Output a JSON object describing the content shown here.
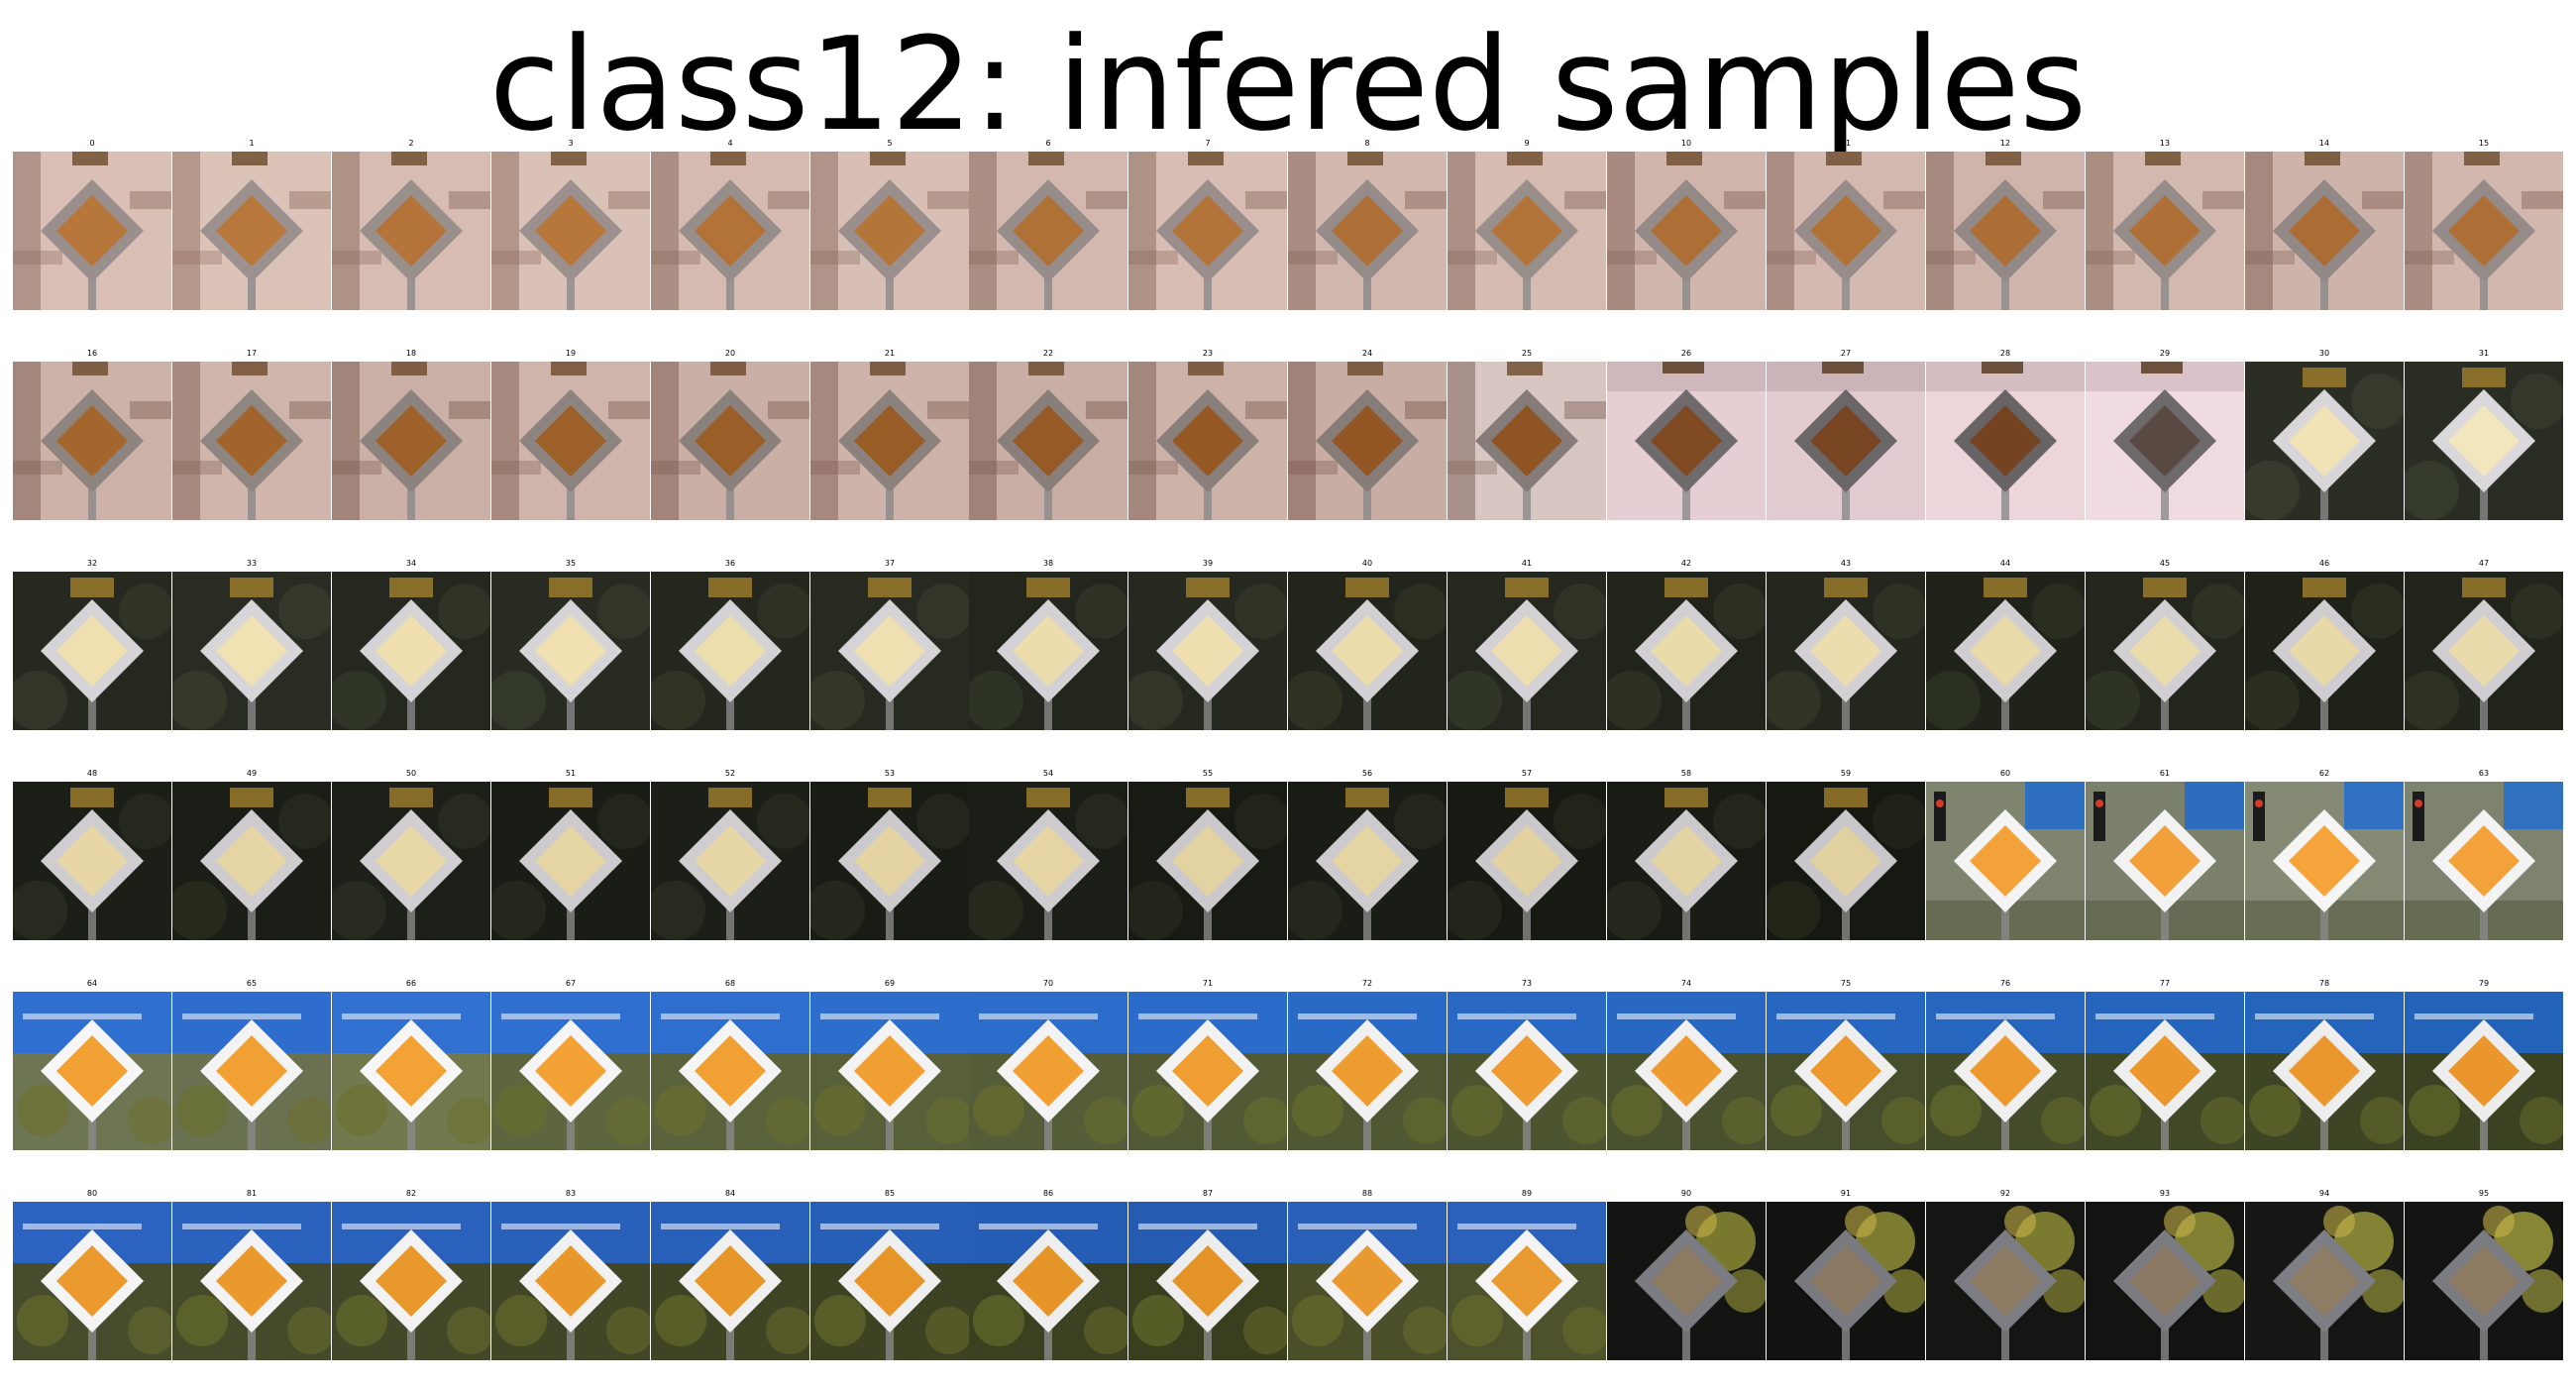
{
  "title": "class12: infered samples",
  "grid": {
    "columns": 16,
    "rows": 6
  },
  "samples": [
    {
      "label": "0",
      "scene": "building",
      "bg": "#d9bfb6",
      "accent": "#8a6a5c",
      "sign_fill": "#b7773a",
      "sign_border": "#9a8f8c"
    },
    {
      "label": "1",
      "scene": "building",
      "bg": "#dcc3b8",
      "accent": "#8e6d5f",
      "sign_fill": "#b8783b",
      "sign_border": "#9c918e"
    },
    {
      "label": "2",
      "scene": "building",
      "bg": "#d6bcb3",
      "accent": "#86675a",
      "sign_fill": "#b5753a",
      "sign_border": "#99908c"
    },
    {
      "label": "3",
      "scene": "building",
      "bg": "#dac1b7",
      "accent": "#8b6b5d",
      "sign_fill": "#b7773a",
      "sign_border": "#9b908d"
    },
    {
      "label": "4",
      "scene": "building",
      "bg": "#d4bab1",
      "accent": "#846458",
      "sign_fill": "#b27238",
      "sign_border": "#978d8a"
    },
    {
      "label": "5",
      "scene": "building",
      "bg": "#d8bfb5",
      "accent": "#896a5c",
      "sign_fill": "#b47539",
      "sign_border": "#9a8f8c"
    },
    {
      "label": "6",
      "scene": "building",
      "bg": "#d3b8af",
      "accent": "#836356",
      "sign_fill": "#b07137",
      "sign_border": "#968c89"
    },
    {
      "label": "7",
      "scene": "building",
      "bg": "#d7bdb3",
      "accent": "#87685a",
      "sign_fill": "#b37439",
      "sign_border": "#998e8b"
    },
    {
      "label": "8",
      "scene": "building",
      "bg": "#d2b7ae",
      "accent": "#826255",
      "sign_fill": "#af7037",
      "sign_border": "#958b88"
    },
    {
      "label": "9",
      "scene": "building",
      "bg": "#d5bbb1",
      "accent": "#856659",
      "sign_fill": "#b27338",
      "sign_border": "#988e8a"
    },
    {
      "label": "10",
      "scene": "building",
      "bg": "#d0b5ac",
      "accent": "#806054",
      "sign_fill": "#ae6f36",
      "sign_border": "#948a87"
    },
    {
      "label": "11",
      "scene": "building",
      "bg": "#d4b9b0",
      "accent": "#846457",
      "sign_fill": "#b07137",
      "sign_border": "#978c89"
    },
    {
      "label": "12",
      "scene": "building",
      "bg": "#cfb4ab",
      "accent": "#7f5f53",
      "sign_fill": "#ad6e36",
      "sign_border": "#938986"
    },
    {
      "label": "13",
      "scene": "building",
      "bg": "#d3b8af",
      "accent": "#836356",
      "sign_fill": "#af7037",
      "sign_border": "#968c89"
    },
    {
      "label": "14",
      "scene": "building",
      "bg": "#ceb3aa",
      "accent": "#7e5e52",
      "sign_fill": "#ac6d35",
      "sign_border": "#928885"
    },
    {
      "label": "15",
      "scene": "building",
      "bg": "#d2b7ae",
      "accent": "#826255",
      "sign_fill": "#ae6f36",
      "sign_border": "#958b88"
    },
    {
      "label": "16",
      "scene": "building",
      "bg": "#cdb2a9",
      "accent": "#7c5c50",
      "sign_fill": "#a4662c",
      "sign_border": "#8e8480"
    },
    {
      "label": "17",
      "scene": "building",
      "bg": "#d0b5ac",
      "accent": "#7f5f53",
      "sign_fill": "#a2642b",
      "sign_border": "#8f8581"
    },
    {
      "label": "18",
      "scene": "building",
      "bg": "#cbb0a7",
      "accent": "#7a5a4e",
      "sign_fill": "#9f612a",
      "sign_border": "#8c827e"
    },
    {
      "label": "19",
      "scene": "building",
      "bg": "#cfb4ab",
      "accent": "#7e5e52",
      "sign_fill": "#9d6029",
      "sign_border": "#8d837f"
    },
    {
      "label": "20",
      "scene": "building",
      "bg": "#caafa6",
      "accent": "#79594d",
      "sign_fill": "#9a5e28",
      "sign_border": "#8a807c"
    },
    {
      "label": "21",
      "scene": "building",
      "bg": "#ceb3aa",
      "accent": "#7d5d51",
      "sign_fill": "#985c27",
      "sign_border": "#8b817d"
    },
    {
      "label": "22",
      "scene": "building",
      "bg": "#c9aea5",
      "accent": "#78584c",
      "sign_fill": "#965a26",
      "sign_border": "#887e7a"
    },
    {
      "label": "23",
      "scene": "building",
      "bg": "#cdb2a9",
      "accent": "#7c5c50",
      "sign_fill": "#945925",
      "sign_border": "#897f7b"
    },
    {
      "label": "24",
      "scene": "building",
      "bg": "#c8ada4",
      "accent": "#77574b",
      "sign_fill": "#925724",
      "sign_border": "#867c78"
    },
    {
      "label": "25",
      "scene": "building",
      "bg": "#d8c6c2",
      "accent": "#7a5e55",
      "sign_fill": "#8e5424",
      "sign_border": "#857b78"
    },
    {
      "label": "26",
      "scene": "pink",
      "bg": "#e6cfd3",
      "accent": "#8a7378",
      "sign_fill": "#7f4a22",
      "sign_border": "#6f6a6c"
    },
    {
      "label": "27",
      "scene": "pink",
      "bg": "#e2cbcf",
      "accent": "#857075",
      "sign_fill": "#784622",
      "sign_border": "#6b6668"
    },
    {
      "label": "28",
      "scene": "pink",
      "bg": "#ecd6da",
      "accent": "#8e777c",
      "sign_fill": "#744322",
      "sign_border": "#686365"
    },
    {
      "label": "29",
      "scene": "pink",
      "bg": "#f0dbe0",
      "accent": "#927b80",
      "sign_fill": "#5a4a44",
      "sign_border": "#6e6a6c"
    },
    {
      "label": "30",
      "scene": "dark",
      "bg": "#2b2e24",
      "accent": "#3f4533",
      "sign_fill": "#f1e3b5",
      "sign_border": "#d8d6d8"
    },
    {
      "label": "31",
      "scene": "dark",
      "bg": "#2a2d23",
      "accent": "#3e4432",
      "sign_fill": "#f2e6bd",
      "sign_border": "#dad8da"
    },
    {
      "label": "32",
      "scene": "dark",
      "bg": "#25291f",
      "accent": "#3a402e",
      "sign_fill": "#efe0b0",
      "sign_border": "#d6d4d6"
    },
    {
      "label": "33",
      "scene": "dark",
      "bg": "#282c22",
      "accent": "#3d4331",
      "sign_fill": "#f0e2b3",
      "sign_border": "#d7d5d7"
    },
    {
      "label": "34",
      "scene": "dark",
      "bg": "#24281e",
      "accent": "#393f2d",
      "sign_fill": "#eedfae",
      "sign_border": "#d5d3d5"
    },
    {
      "label": "35",
      "scene": "dark",
      "bg": "#272b21",
      "accent": "#3c4230",
      "sign_fill": "#efe1b1",
      "sign_border": "#d6d4d6"
    },
    {
      "label": "36",
      "scene": "dark",
      "bg": "#23271d",
      "accent": "#383e2c",
      "sign_fill": "#eddead",
      "sign_border": "#d4d2d4"
    },
    {
      "label": "37",
      "scene": "dark",
      "bg": "#262a20",
      "accent": "#3b412f",
      "sign_fill": "#eee0b0",
      "sign_border": "#d5d3d5"
    },
    {
      "label": "38",
      "scene": "dark",
      "bg": "#22261c",
      "accent": "#373d2b",
      "sign_fill": "#ecddac",
      "sign_border": "#d3d1d3"
    },
    {
      "label": "39",
      "scene": "dark",
      "bg": "#25291f",
      "accent": "#3a402e",
      "sign_fill": "#eddfaf",
      "sign_border": "#d4d2d4"
    },
    {
      "label": "40",
      "scene": "dark",
      "bg": "#21251b",
      "accent": "#363c2a",
      "sign_fill": "#ebdcab",
      "sign_border": "#d2d0d2"
    },
    {
      "label": "41",
      "scene": "dark",
      "bg": "#24281e",
      "accent": "#393f2d",
      "sign_fill": "#ecdeae",
      "sign_border": "#d3d1d3"
    },
    {
      "label": "42",
      "scene": "dark",
      "bg": "#20241a",
      "accent": "#353b29",
      "sign_fill": "#eadbaa",
      "sign_border": "#d1cfd1"
    },
    {
      "label": "43",
      "scene": "dark",
      "bg": "#23271d",
      "accent": "#383e2c",
      "sign_fill": "#ebddad",
      "sign_border": "#d2d0d2"
    },
    {
      "label": "44",
      "scene": "dark",
      "bg": "#1f2319",
      "accent": "#343a28",
      "sign_fill": "#e9daa9",
      "sign_border": "#d0ced0"
    },
    {
      "label": "45",
      "scene": "dark",
      "bg": "#22261c",
      "accent": "#373d2b",
      "sign_fill": "#eadcac",
      "sign_border": "#d1cfd1"
    },
    {
      "label": "46",
      "scene": "dark",
      "bg": "#1e2218",
      "accent": "#333927",
      "sign_fill": "#e8d9a8",
      "sign_border": "#cfcdcf"
    },
    {
      "label": "47",
      "scene": "dark",
      "bg": "#21251b",
      "accent": "#363c2a",
      "sign_fill": "#e9dbab",
      "sign_border": "#d0ced0"
    },
    {
      "label": "48",
      "scene": "dark",
      "bg": "#1c1f17",
      "accent": "#2e3324",
      "sign_fill": "#e8d7a6",
      "sign_border": "#cfcdcf"
    },
    {
      "label": "49",
      "scene": "dark",
      "bg": "#1b1e16",
      "accent": "#2d3223",
      "sign_fill": "#e7d6a5",
      "sign_border": "#cecccf"
    },
    {
      "label": "50",
      "scene": "dark",
      "bg": "#1d2018",
      "accent": "#2f3425",
      "sign_fill": "#e9d8a7",
      "sign_border": "#d0ced0"
    },
    {
      "label": "51",
      "scene": "dark",
      "bg": "#1a1d15",
      "accent": "#2c3122",
      "sign_fill": "#e6d5a4",
      "sign_border": "#cdcbcd"
    },
    {
      "label": "52",
      "scene": "dark",
      "bg": "#1c1f17",
      "accent": "#2e3324",
      "sign_fill": "#e8d7a6",
      "sign_border": "#cfcdcf"
    },
    {
      "label": "53",
      "scene": "dark",
      "bg": "#191c14",
      "accent": "#2b3021",
      "sign_fill": "#e5d4a3",
      "sign_border": "#cccacc"
    },
    {
      "label": "54",
      "scene": "dark",
      "bg": "#1b1e16",
      "accent": "#2d3223",
      "sign_fill": "#e7d6a5",
      "sign_border": "#cecccf"
    },
    {
      "label": "55",
      "scene": "dark",
      "bg": "#181b13",
      "accent": "#2a2f20",
      "sign_fill": "#e4d3a2",
      "sign_border": "#cbc9cb"
    },
    {
      "label": "56",
      "scene": "dark",
      "bg": "#1a1d15",
      "accent": "#2c3122",
      "sign_fill": "#e6d5a4",
      "sign_border": "#cdcbcd"
    },
    {
      "label": "57",
      "scene": "dark",
      "bg": "#171a12",
      "accent": "#292e1f",
      "sign_fill": "#e3d2a1",
      "sign_border": "#cac8ca"
    },
    {
      "label": "58",
      "scene": "dark",
      "bg": "#191c14",
      "accent": "#2b3021",
      "sign_fill": "#e5d4a3",
      "sign_border": "#cccacc"
    },
    {
      "label": "59",
      "scene": "dark",
      "bg": "#161911",
      "accent": "#282d1e",
      "sign_fill": "#e2d1a0",
      "sign_border": "#c9c7c9"
    },
    {
      "label": "60",
      "scene": "street",
      "bg": "#7f846f",
      "accent": "#2f6fc0",
      "sign_fill": "#f3a23a",
      "sign_border": "#f4f4f4"
    },
    {
      "label": "61",
      "scene": "street",
      "bg": "#7a806b",
      "accent": "#2e6dbd",
      "sign_fill": "#f2a03a",
      "sign_border": "#f2f2f2"
    },
    {
      "label": "62",
      "scene": "street",
      "bg": "#848a74",
      "accent": "#3071c2",
      "sign_fill": "#f4a43b",
      "sign_border": "#f5f5f5"
    },
    {
      "label": "63",
      "scene": "street",
      "bg": "#7d836e",
      "accent": "#2f70bf",
      "sign_fill": "#f3a23a",
      "sign_border": "#f3f3f3"
    },
    {
      "label": "64",
      "scene": "blue",
      "bg": "#6e7552",
      "accent": "#2f6fd0",
      "sign_fill": "#f2a235",
      "sign_border": "#f6f6f6"
    },
    {
      "label": "65",
      "scene": "blue",
      "bg": "#6a7150",
      "accent": "#2e6dcd",
      "sign_fill": "#f1a034",
      "sign_border": "#f4f4f4"
    },
    {
      "label": "66",
      "scene": "blue",
      "bg": "#72794f",
      "accent": "#3071d2",
      "sign_fill": "#f3a336",
      "sign_border": "#f6f6f6"
    },
    {
      "label": "67",
      "scene": "blue",
      "bg": "#5e6640",
      "accent": "#2f6fd0",
      "sign_fill": "#f2a235",
      "sign_border": "#f5f5f5"
    },
    {
      "label": "68",
      "scene": "blue",
      "bg": "#5b633d",
      "accent": "#2e6ece",
      "sign_fill": "#f1a134",
      "sign_border": "#f4f4f4"
    },
    {
      "label": "69",
      "scene": "blue",
      "bg": "#58603a",
      "accent": "#2d6dcc",
      "sign_fill": "#f0a033",
      "sign_border": "#f3f3f3"
    },
    {
      "label": "70",
      "scene": "blue",
      "bg": "#555d38",
      "accent": "#2c6cca",
      "sign_fill": "#f09f33",
      "sign_border": "#f3f3f3"
    },
    {
      "label": "71",
      "scene": "blue",
      "bg": "#525a35",
      "accent": "#2b6bc9",
      "sign_fill": "#ef9e32",
      "sign_border": "#f2f2f2"
    },
    {
      "label": "72",
      "scene": "blue",
      "bg": "#4f5733",
      "accent": "#2a6ac7",
      "sign_fill": "#ee9d31",
      "sign_border": "#f1f1f1"
    },
    {
      "label": "73",
      "scene": "blue",
      "bg": "#4c5430",
      "accent": "#2969c5",
      "sign_fill": "#ee9c31",
      "sign_border": "#f1f1f1"
    },
    {
      "label": "74",
      "scene": "blue",
      "bg": "#49512e",
      "accent": "#2868c3",
      "sign_fill": "#ed9b30",
      "sign_border": "#f0f0f0"
    },
    {
      "label": "75",
      "scene": "blue",
      "bg": "#464e2b",
      "accent": "#2767c1",
      "sign_fill": "#ec9a2f",
      "sign_border": "#efefef"
    },
    {
      "label": "76",
      "scene": "blue",
      "bg": "#434b29",
      "accent": "#2666bf",
      "sign_fill": "#ec992f",
      "sign_border": "#efefef"
    },
    {
      "label": "77",
      "scene": "blue",
      "bg": "#404826",
      "accent": "#2565bd",
      "sign_fill": "#eb982e",
      "sign_border": "#eeeeee"
    },
    {
      "label": "78",
      "scene": "blue",
      "bg": "#3d4524",
      "accent": "#2464bb",
      "sign_fill": "#ea972d",
      "sign_border": "#ededed"
    },
    {
      "label": "79",
      "scene": "blue",
      "bg": "#3a4221",
      "accent": "#2363b9",
      "sign_fill": "#ea962d",
      "sign_border": "#ededed"
    },
    {
      "label": "80",
      "scene": "blue",
      "bg": "#474d2c",
      "accent": "#2c63c0",
      "sign_fill": "#eb9a2e",
      "sign_border": "#f4f4f4"
    },
    {
      "label": "81",
      "scene": "blue",
      "bg": "#454b2a",
      "accent": "#2b62be",
      "sign_fill": "#ea992d",
      "sign_border": "#f3f3f3"
    },
    {
      "label": "82",
      "scene": "blue",
      "bg": "#434928",
      "accent": "#2a61bc",
      "sign_fill": "#e9982c",
      "sign_border": "#f2f2f2"
    },
    {
      "label": "83",
      "scene": "blue",
      "bg": "#414726",
      "accent": "#2960ba",
      "sign_fill": "#e8972b",
      "sign_border": "#f1f1f1"
    },
    {
      "label": "84",
      "scene": "blue",
      "bg": "#3f4524",
      "accent": "#285fb8",
      "sign_fill": "#e7962a",
      "sign_border": "#f0f0f0"
    },
    {
      "label": "85",
      "scene": "blue",
      "bg": "#3d4322",
      "accent": "#275eb6",
      "sign_fill": "#e69529",
      "sign_border": "#efefef"
    },
    {
      "label": "86",
      "scene": "blue",
      "bg": "#3b4120",
      "accent": "#265db4",
      "sign_fill": "#e59428",
      "sign_border": "#eeeeee"
    },
    {
      "label": "87",
      "scene": "blue",
      "bg": "#393f1e",
      "accent": "#255cb2",
      "sign_fill": "#e49327",
      "sign_border": "#ededed"
    },
    {
      "label": "88",
      "scene": "blue",
      "bg": "#4a4f2a",
      "accent": "#2a60b8",
      "sign_fill": "#e89a30",
      "sign_border": "#f3f3f3"
    },
    {
      "label": "89",
      "scene": "blue",
      "bg": "#4d522c",
      "accent": "#2b61ba",
      "sign_fill": "#e99b31",
      "sign_border": "#f4f4f4"
    },
    {
      "label": "90",
      "scene": "foliage",
      "bg": "#141512",
      "accent": "#9a9a3a",
      "sign_fill": "#8d7a63",
      "sign_border": "#7b7b82"
    },
    {
      "label": "91",
      "scene": "foliage",
      "bg": "#121310",
      "accent": "#a0a03c",
      "sign_fill": "#8b7862",
      "sign_border": "#797980"
    },
    {
      "label": "92",
      "scene": "foliage",
      "bg": "#151613",
      "accent": "#9c9c3b",
      "sign_fill": "#8e7b64",
      "sign_border": "#7c7c83"
    },
    {
      "label": "93",
      "scene": "foliage",
      "bg": "#131411",
      "accent": "#a4a43e",
      "sign_fill": "#8c7963",
      "sign_border": "#7a7a81"
    },
    {
      "label": "94",
      "scene": "foliage",
      "bg": "#161714",
      "accent": "#a8a840",
      "sign_fill": "#8f7c65",
      "sign_border": "#7d7d84"
    },
    {
      "label": "95",
      "scene": "foliage",
      "bg": "#141512",
      "accent": "#acac42",
      "sign_fill": "#8d7a63",
      "sign_border": "#7b7b82"
    }
  ]
}
